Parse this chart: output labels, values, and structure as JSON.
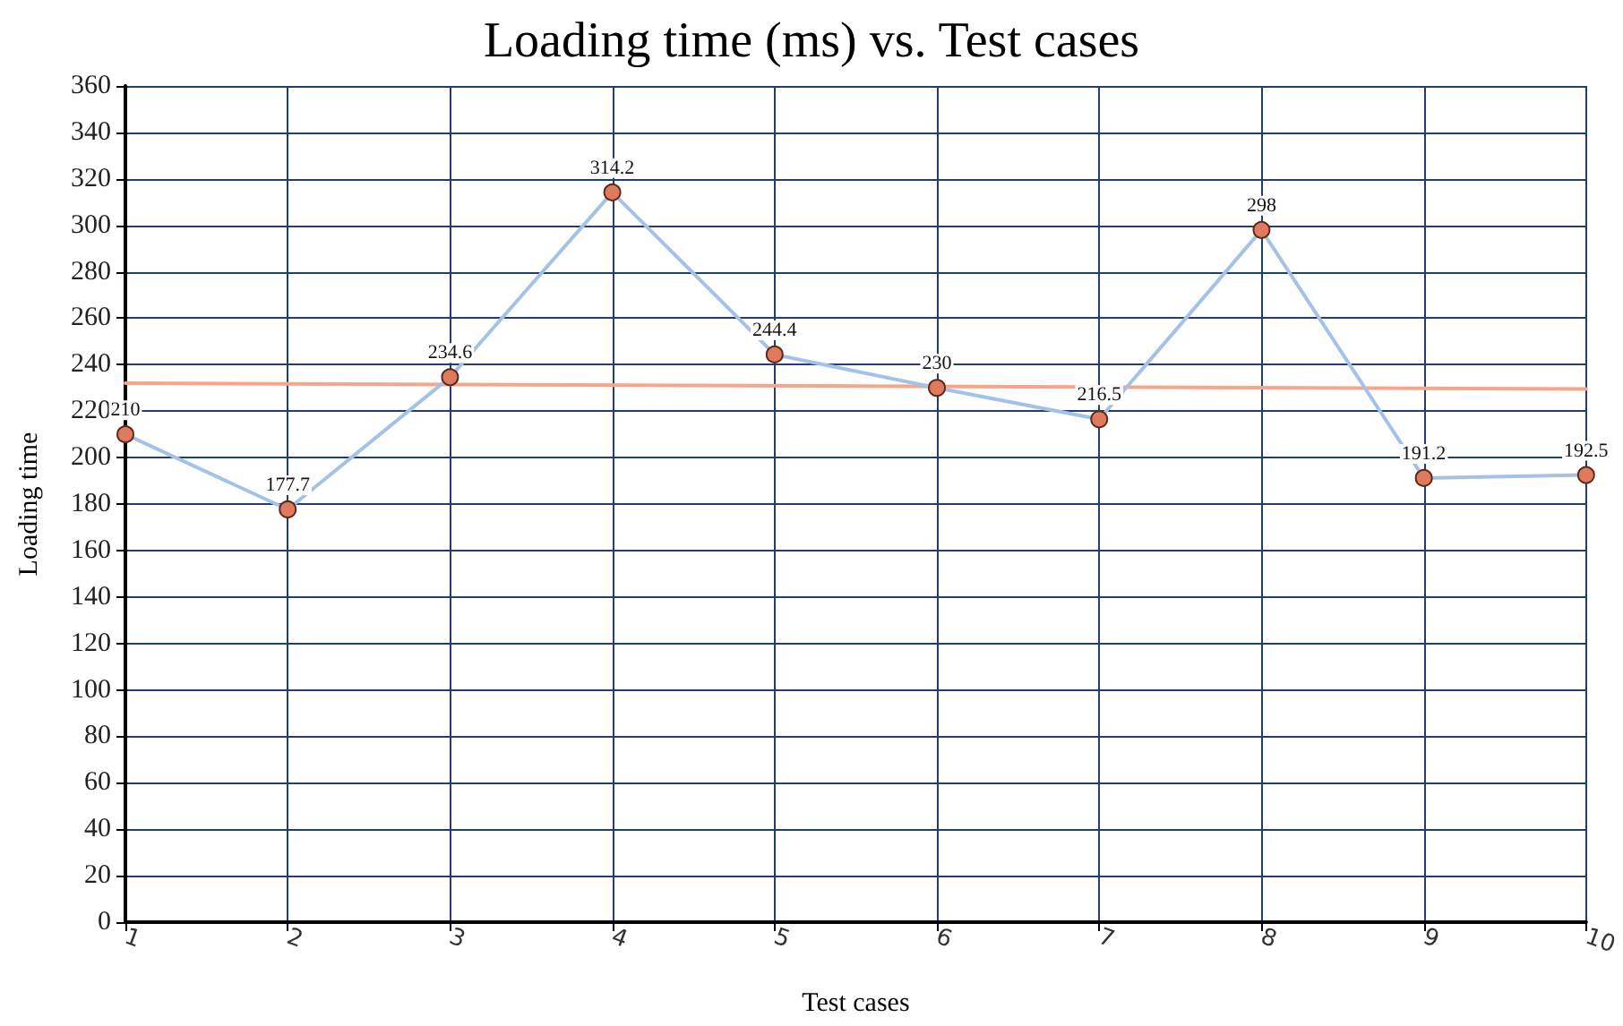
{
  "chart_data": {
    "type": "line",
    "title": "Loading time (ms) vs. Test cases",
    "xlabel": "Test cases",
    "ylabel": "Loading time",
    "x": [
      1,
      2,
      3,
      4,
      5,
      6,
      7,
      8,
      9,
      10
    ],
    "series": [
      {
        "color": "#a4c2e8",
        "values": [
          210,
          177.7,
          234.6,
          314.2,
          244.4,
          230,
          216.5,
          298,
          191.2,
          192.5
        ],
        "value_labels": [
          "210",
          "177.7",
          "234.6",
          "314.2",
          "244.4",
          "230",
          "216.5",
          "298",
          "191.2",
          "192.5"
        ],
        "marker": "circle"
      },
      {
        "color": "#f8a58a",
        "x": [
          1,
          10
        ],
        "values": [
          232,
          229.5
        ],
        "marker": "none"
      }
    ],
    "xlim": [
      1,
      10
    ],
    "xticks": [
      1,
      2,
      3,
      4,
      5,
      6,
      7,
      8,
      9,
      10
    ],
    "ylim": [
      0,
      360
    ],
    "yticks": [
      0,
      20,
      40,
      60,
      80,
      100,
      120,
      140,
      160,
      180,
      200,
      220,
      240,
      260,
      280,
      300,
      320,
      340,
      360
    ],
    "grid": true
  }
}
